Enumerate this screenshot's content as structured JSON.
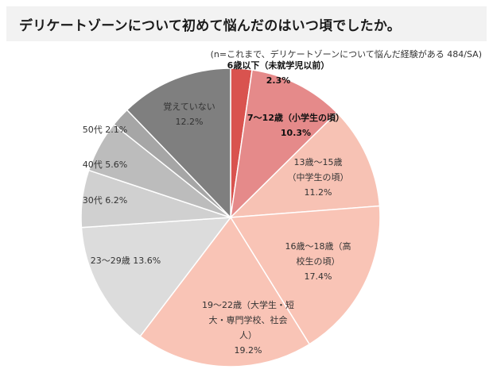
{
  "title": "デリケートゾーンについて初めて悩んだのはいつ頃でしたか。",
  "note": "(n=これまで、デリケートゾーンについて悩んだ経験がある 484/SA)",
  "chart_data": {
    "type": "pie",
    "start_angle_deg": 0,
    "direction": "clockwise",
    "slices": [
      {
        "label_lines": [
          "6歳以下（未就学児以前）"
        ],
        "value_text": "2.3%",
        "value": 2.3,
        "color": "#d9534f",
        "bold": true
      },
      {
        "label_lines": [
          "7～12歳（小学生の頃）"
        ],
        "value_text": "10.3%",
        "value": 10.3,
        "color": "#e58a8a",
        "bold": true
      },
      {
        "label_lines": [
          "13歳～15歳",
          "（中学生の頃）"
        ],
        "value_text": "11.2%",
        "value": 11.2,
        "color": "#f7c2b4",
        "bold": false
      },
      {
        "label_lines": [
          "16歳～18歳（高",
          "校生の頃）"
        ],
        "value_text": "17.4%",
        "value": 17.4,
        "color": "#f9c4b6",
        "bold": false
      },
      {
        "label_lines": [
          "19～22歳（大学生・短",
          "大・専門学校、社会",
          "人）"
        ],
        "value_text": "19.2%",
        "value": 19.2,
        "color": "#f9c4b6",
        "bold": false
      },
      {
        "label_lines": [
          "23～29歳"
        ],
        "value_text": "13.6%",
        "value": 13.6,
        "color": "#dcdcdc",
        "bold": false
      },
      {
        "label_lines": [
          "30代"
        ],
        "value_text": "6.2%",
        "value": 6.2,
        "color": "#d0d0d0",
        "bold": false
      },
      {
        "label_lines": [
          "40代"
        ],
        "value_text": "5.6%",
        "value": 5.6,
        "color": "#bcbcbc",
        "bold": false
      },
      {
        "label_lines": [
          "50代"
        ],
        "value_text": "2.1%",
        "value": 2.1,
        "color": "#a6a6a6",
        "bold": false
      },
      {
        "label_lines": [
          "覚えていない"
        ],
        "value_text": "12.2%",
        "value": 12.2,
        "color": "#7f7f7f",
        "bold": false
      }
    ]
  }
}
